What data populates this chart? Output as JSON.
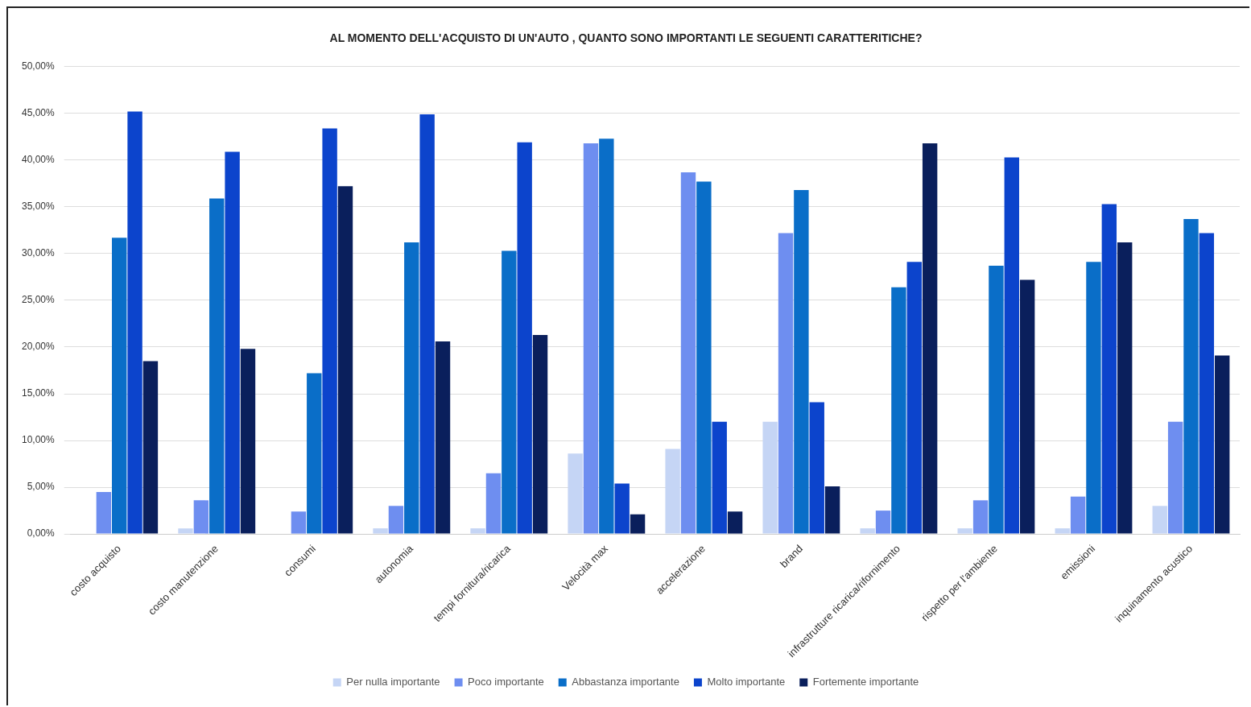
{
  "chart_data": {
    "type": "bar",
    "title": "AL MOMENTO DELL'ACQUISTO DI UN'AUTO , QUANTO SONO IMPORTANTI LE SEGUENTI CARATTERITICHE?",
    "categories": [
      "costo acquisto",
      "costo manutenzione",
      "consumi",
      "autonomia",
      "tempi fornitura/ricarica",
      "Velocità max",
      "accelerazione",
      "brand",
      "infrastrutture ricarica/rifornimento",
      "rispetto per l'ambiente",
      "emissioni",
      "inquinamento acustico"
    ],
    "series": [
      {
        "name": "Per nulla importante",
        "color": "#c5d5f5",
        "values": [
          0,
          0.6,
          0,
          0.6,
          0.6,
          8.6,
          9.1,
          12.0,
          0.6,
          0.6,
          0.6,
          3.0
        ]
      },
      {
        "name": "Poco importante",
        "color": "#6e8ef0",
        "values": [
          4.5,
          3.6,
          2.4,
          3.0,
          6.5,
          41.8,
          38.7,
          32.2,
          2.5,
          3.6,
          4.0,
          12.0
        ]
      },
      {
        "name": "Abbastanza importante",
        "color": "#0a6ec8",
        "values": [
          31.7,
          35.9,
          17.2,
          31.2,
          30.3,
          42.3,
          37.7,
          36.8,
          26.4,
          28.7,
          29.1,
          33.7
        ]
      },
      {
        "name": "Molto importante",
        "color": "#0c44cc",
        "values": [
          45.2,
          40.9,
          43.4,
          44.9,
          41.9,
          5.4,
          12.0,
          14.1,
          29.1,
          40.3,
          35.3,
          32.2
        ]
      },
      {
        "name": "Fortemente importante",
        "color": "#0a1f5c",
        "values": [
          18.5,
          19.8,
          37.2,
          20.6,
          21.3,
          2.1,
          2.4,
          5.1,
          41.8,
          27.2,
          31.2,
          19.1
        ]
      }
    ],
    "ylim": [
      0,
      50
    ],
    "yticks": [
      {
        "value": 0,
        "label": "0,00%"
      },
      {
        "value": 5,
        "label": "5,00%"
      },
      {
        "value": 10,
        "label": "10,00%"
      },
      {
        "value": 15,
        "label": "15,00%"
      },
      {
        "value": 20,
        "label": "20,00%"
      },
      {
        "value": 25,
        "label": "25,00%"
      },
      {
        "value": 30,
        "label": "30,00%"
      },
      {
        "value": 35,
        "label": "35,00%"
      },
      {
        "value": 40,
        "label": "40,00%"
      },
      {
        "value": 45,
        "label": "45,00%"
      },
      {
        "value": 50,
        "label": "50,00%"
      }
    ],
    "grid": "y",
    "legend": "bottom"
  }
}
